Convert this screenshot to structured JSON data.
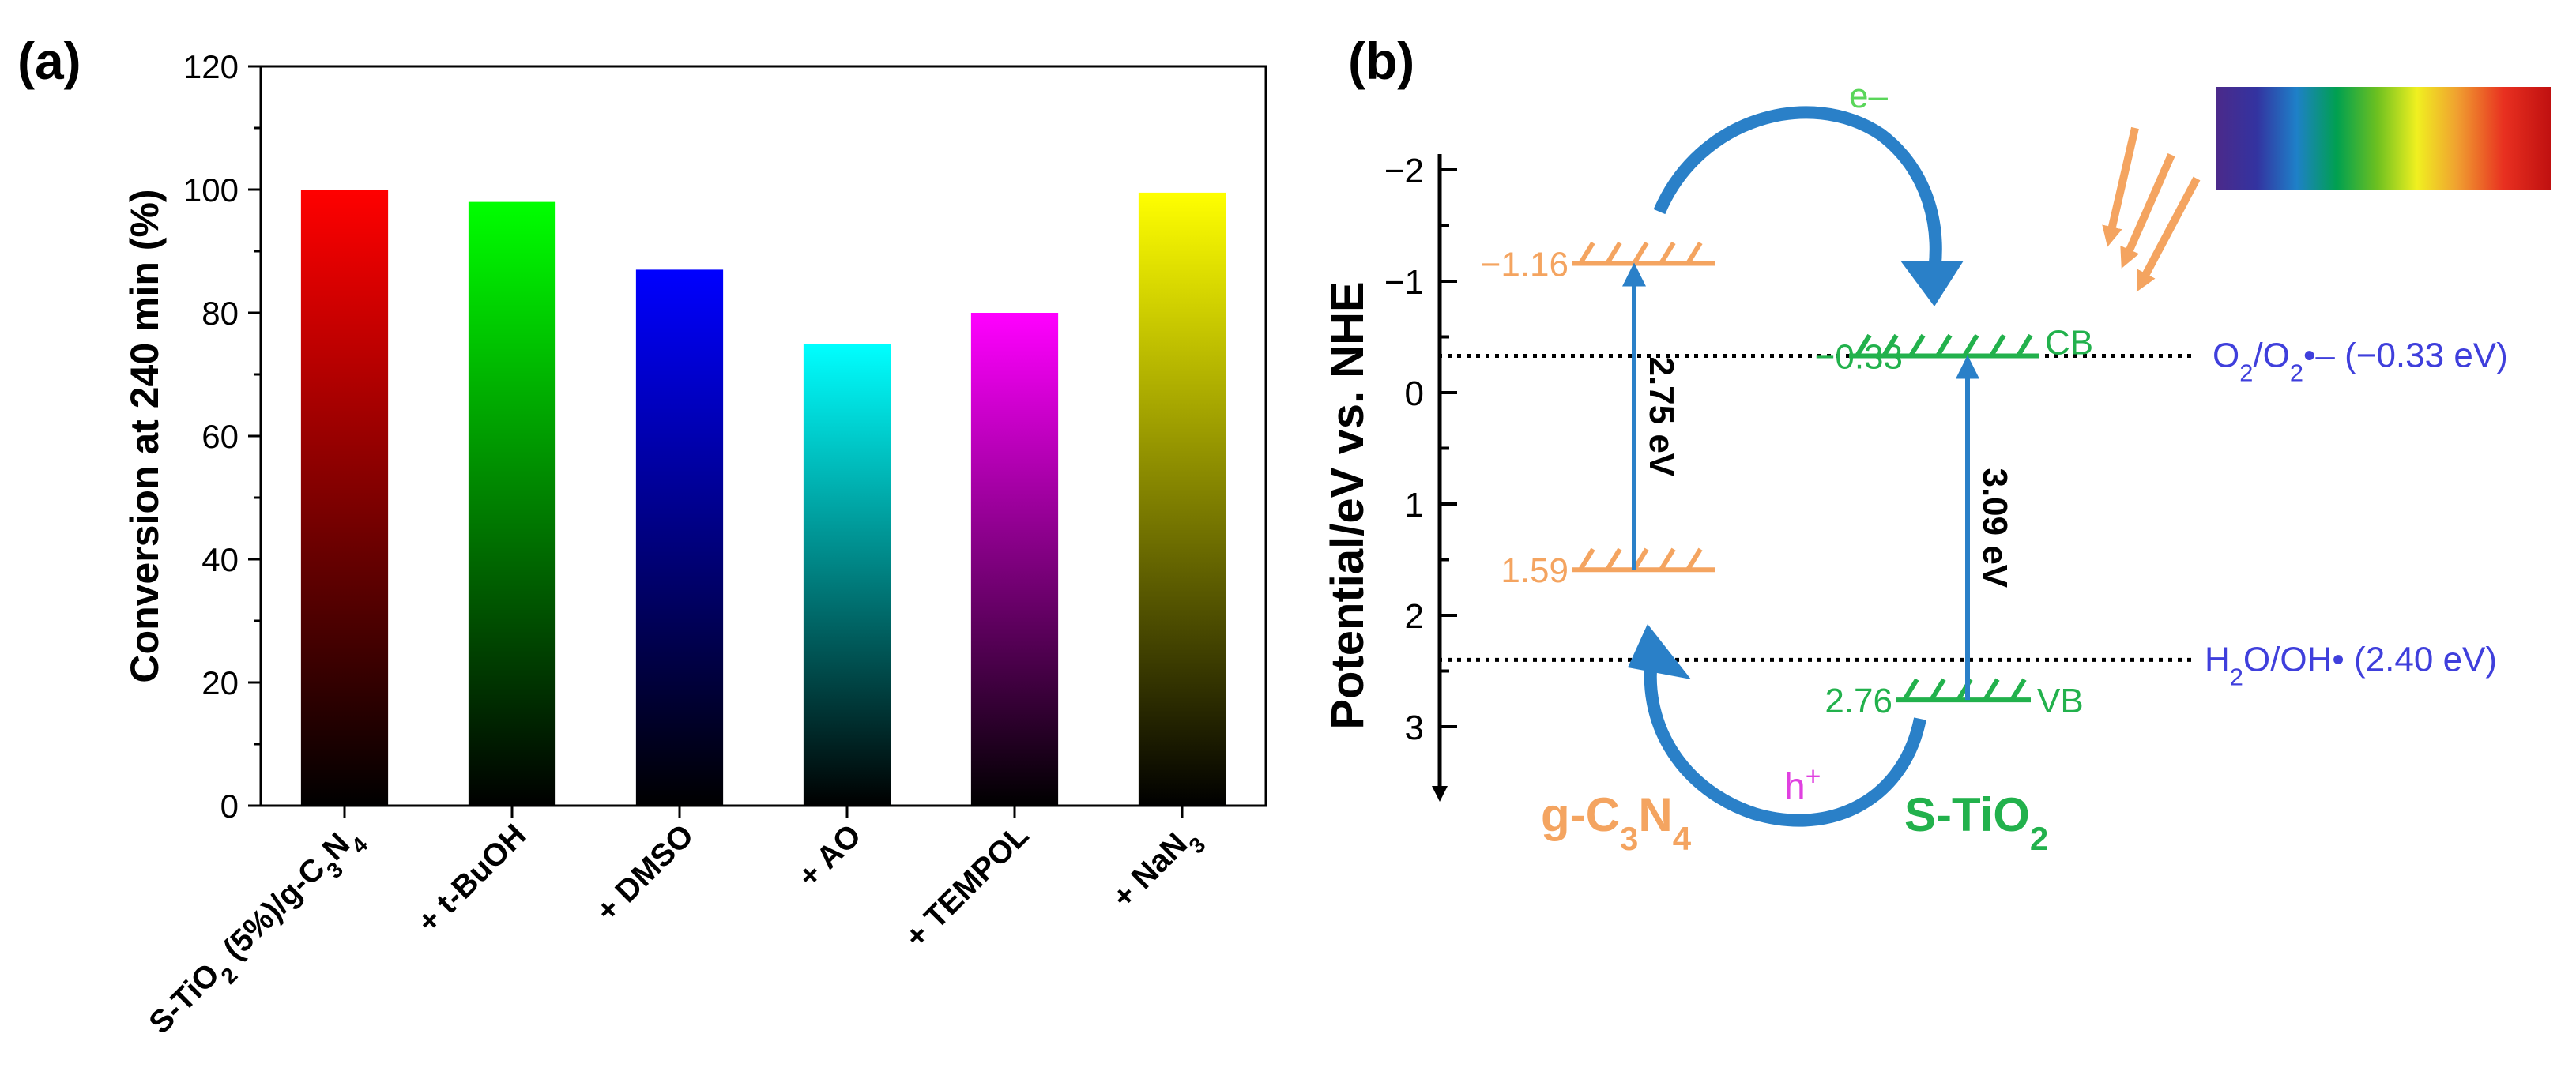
{
  "panel_a": {
    "label": "(a)",
    "chart_data": {
      "type": "bar",
      "title": "",
      "xlabel": "",
      "ylabel": "Conversion at 240 min (%)",
      "ylim": [
        0,
        120
      ],
      "yticks": [
        0,
        20,
        40,
        60,
        80,
        100,
        120
      ],
      "categories": [
        "S-TiO2 (5%)/g-C3N4",
        "+ t-BuOH",
        "+ DMSO",
        "+ AO",
        "+ TEMPOL",
        "+ NaN3"
      ],
      "values": [
        100,
        98,
        87,
        75,
        80,
        99.5
      ],
      "colors": [
        "#ff0000",
        "#00ff00",
        "#0000ff",
        "#00ffff",
        "#ff00ff",
        "#ffff00"
      ],
      "fill": "vertical gradient from color (top) to black (bottom)"
    }
  },
  "panel_b": {
    "label": "(b)",
    "ylabel": "Potential/eV vs. NHE",
    "yticks": [
      -2,
      -1,
      0,
      1,
      2,
      3
    ],
    "yrange": [
      -2.4,
      3.6
    ],
    "levels": {
      "gcn_cb": "−1.16",
      "gcn_vb": "1.59",
      "tio2_cb": "−0.33",
      "tio2_vb": "2.76",
      "gcn_cb_value": -1.16,
      "gcn_vb_value": 1.59,
      "tio2_cb_value": -0.33,
      "tio2_vb_value": 2.76
    },
    "band_labels": {
      "cb": "CB",
      "vb": "VB"
    },
    "gaps": {
      "gcn": "2.75 eV",
      "tio2": "3.09 eV"
    },
    "carriers": {
      "electron": "e–",
      "hole": "h+"
    },
    "materials": {
      "gcn": "g-C3N4",
      "tio2": "S-TiO2"
    },
    "reference_lines": [
      {
        "label": "O2/O2•– (−0.33 eV)",
        "value": -0.33
      },
      {
        "label": "H2O/OH• (2.40 eV)",
        "value": 2.4
      }
    ],
    "colors": {
      "gcn": "#f4a460",
      "tio2": "#22b14c",
      "reference": "#3f3fdc",
      "arrow": "#2a80c8",
      "electron": "#5ad65a",
      "hole": "#e040e0"
    }
  }
}
